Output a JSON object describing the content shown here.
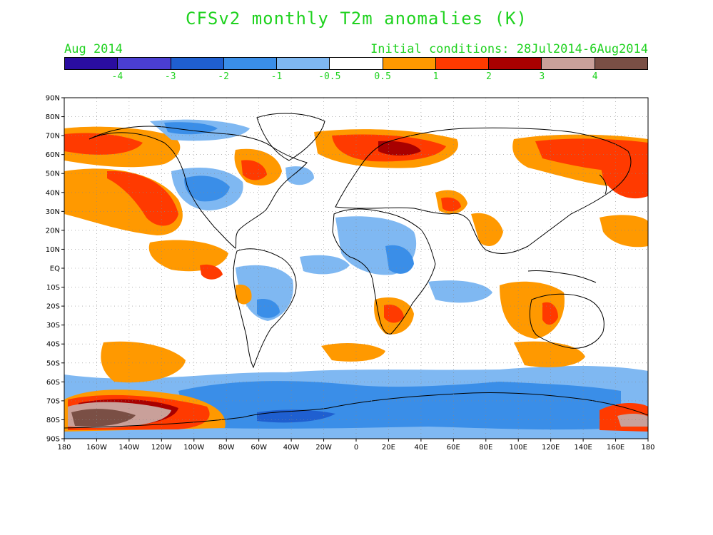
{
  "title": "CFSv2 monthly T2m anomalies (K)",
  "subtitle_left": "Aug 2014",
  "subtitle_right": "Initial conditions: 28Jul2014-6Aug2014",
  "colorbar": {
    "colors": [
      "#2a0da0",
      "#4a3ed2",
      "#1f5fd0",
      "#3a8ee8",
      "#7fb8f2",
      "#ffffff",
      "#ff9900",
      "#ff3a00",
      "#a80000",
      "#c9a09a",
      "#7a4f45"
    ],
    "labels": [
      "-4",
      "-3",
      "-2",
      "-1",
      "-0.5",
      "0.5",
      "1",
      "2",
      "3",
      "4"
    ]
  },
  "axes": {
    "lat_labels": [
      "90N",
      "80N",
      "70N",
      "60N",
      "50N",
      "40N",
      "30N",
      "20N",
      "10N",
      "EQ",
      "10S",
      "20S",
      "30S",
      "40S",
      "50S",
      "60S",
      "70S",
      "80S",
      "90S"
    ],
    "lon_labels": [
      "180",
      "160W",
      "140W",
      "120W",
      "100W",
      "80W",
      "60W",
      "40W",
      "20W",
      "0",
      "20E",
      "40E",
      "60E",
      "80E",
      "100E",
      "120E",
      "140E",
      "160E",
      "180"
    ]
  }
}
